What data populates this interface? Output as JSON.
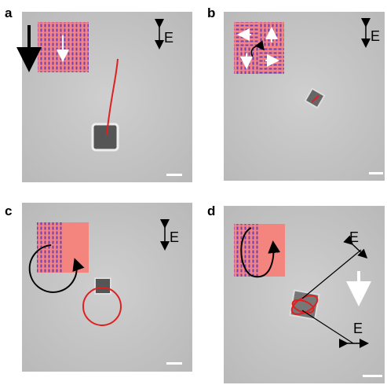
{
  "panels": [
    {
      "label": "a",
      "field_labels": [
        "E"
      ]
    },
    {
      "label": "b",
      "field_labels": [
        "E"
      ]
    },
    {
      "label": "c",
      "field_labels": [
        "E"
      ]
    },
    {
      "label": "d",
      "field_labels": [
        "E",
        "E"
      ]
    }
  ]
}
